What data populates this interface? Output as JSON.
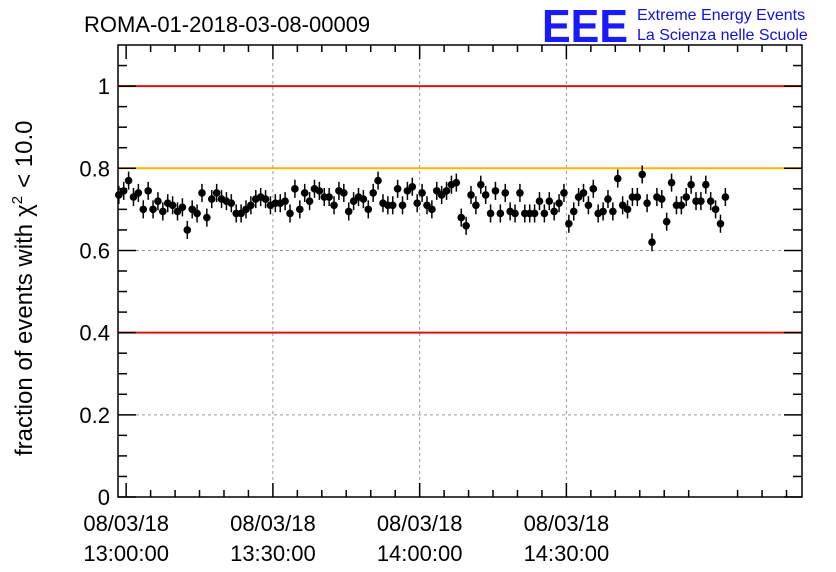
{
  "header": {
    "title": "ROMA-01-2018-03-08-00009"
  },
  "logo": {
    "mark": "EEE",
    "line1": "Extreme Energy Events",
    "line2": "La Scienza nelle Scuole",
    "color": "#1a1aff"
  },
  "colors": {
    "limit_red": "#e01010",
    "limit_orange": "#ffb400",
    "grid": "#999999",
    "points": "#000000"
  },
  "chart_data": {
    "type": "scatter",
    "title": "ROMA-01-2018-03-08-00009",
    "ylabel_prefix": "fraction of events with",
    "ylabel_symbol": "χ",
    "ylabel_sup": "2",
    "ylabel_suffix": "< 10.0",
    "ylim": [
      0,
      1.1
    ],
    "yticks": [
      0,
      0.2,
      0.4,
      0.6,
      0.8,
      1
    ],
    "ytick_labels": [
      "0",
      "0.2",
      "0.4",
      "0.6",
      "0.8",
      "1"
    ],
    "xlim": [
      "12:58:20",
      "15:18:10"
    ],
    "xticks": [
      "13:00:00",
      "13:30:00",
      "14:00:00",
      "14:30:00"
    ],
    "xtick_date": "08/03/18",
    "grid": true,
    "reference_lines": [
      {
        "y": 1.0,
        "color": "#e01010"
      },
      {
        "y": 0.8,
        "color": "#ffb400"
      },
      {
        "y": 0.4,
        "color": "#e01010"
      }
    ],
    "error": 0.022,
    "points": [
      {
        "t": "12:58:30",
        "y": 0.735
      },
      {
        "t": "12:59:30",
        "y": 0.745
      },
      {
        "t": "13:00:30",
        "y": 0.77
      },
      {
        "t": "13:01:30",
        "y": 0.73
      },
      {
        "t": "13:02:30",
        "y": 0.74
      },
      {
        "t": "13:03:30",
        "y": 0.7
      },
      {
        "t": "13:04:30",
        "y": 0.745
      },
      {
        "t": "13:05:30",
        "y": 0.7
      },
      {
        "t": "13:06:30",
        "y": 0.72
      },
      {
        "t": "13:07:30",
        "y": 0.695
      },
      {
        "t": "13:08:30",
        "y": 0.715
      },
      {
        "t": "13:09:30",
        "y": 0.71
      },
      {
        "t": "13:10:30",
        "y": 0.695
      },
      {
        "t": "13:11:30",
        "y": 0.705
      },
      {
        "t": "13:12:30",
        "y": 0.65
      },
      {
        "t": "13:13:30",
        "y": 0.7
      },
      {
        "t": "13:14:30",
        "y": 0.69
      },
      {
        "t": "13:15:30",
        "y": 0.74
      },
      {
        "t": "13:16:30",
        "y": 0.68
      },
      {
        "t": "13:17:30",
        "y": 0.725
      },
      {
        "t": "13:18:30",
        "y": 0.74
      },
      {
        "t": "13:19:30",
        "y": 0.725
      },
      {
        "t": "13:20:30",
        "y": 0.72
      },
      {
        "t": "13:21:30",
        "y": 0.715
      },
      {
        "t": "13:22:30",
        "y": 0.69
      },
      {
        "t": "13:23:30",
        "y": 0.69
      },
      {
        "t": "13:24:30",
        "y": 0.7
      },
      {
        "t": "13:25:30",
        "y": 0.71
      },
      {
        "t": "13:26:30",
        "y": 0.725
      },
      {
        "t": "13:27:30",
        "y": 0.73
      },
      {
        "t": "13:28:30",
        "y": 0.725
      },
      {
        "t": "13:29:30",
        "y": 0.71
      },
      {
        "t": "13:30:30",
        "y": 0.715
      },
      {
        "t": "13:31:30",
        "y": 0.715
      },
      {
        "t": "13:32:30",
        "y": 0.72
      },
      {
        "t": "13:33:30",
        "y": 0.69
      },
      {
        "t": "13:34:30",
        "y": 0.75
      },
      {
        "t": "13:35:30",
        "y": 0.7
      },
      {
        "t": "13:36:30",
        "y": 0.74
      },
      {
        "t": "13:37:30",
        "y": 0.72
      },
      {
        "t": "13:38:30",
        "y": 0.75
      },
      {
        "t": "13:39:30",
        "y": 0.745
      },
      {
        "t": "13:40:30",
        "y": 0.73
      },
      {
        "t": "13:41:30",
        "y": 0.73
      },
      {
        "t": "13:42:30",
        "y": 0.71
      },
      {
        "t": "13:43:30",
        "y": 0.745
      },
      {
        "t": "13:44:30",
        "y": 0.74
      },
      {
        "t": "13:45:30",
        "y": 0.695
      },
      {
        "t": "13:46:30",
        "y": 0.72
      },
      {
        "t": "13:47:30",
        "y": 0.73
      },
      {
        "t": "13:48:30",
        "y": 0.725
      },
      {
        "t": "13:49:30",
        "y": 0.7
      },
      {
        "t": "13:50:30",
        "y": 0.74
      },
      {
        "t": "13:51:30",
        "y": 0.77
      },
      {
        "t": "13:52:30",
        "y": 0.715
      },
      {
        "t": "13:53:30",
        "y": 0.71
      },
      {
        "t": "13:54:30",
        "y": 0.71
      },
      {
        "t": "13:55:30",
        "y": 0.75
      },
      {
        "t": "13:56:30",
        "y": 0.71
      },
      {
        "t": "13:57:30",
        "y": 0.745
      },
      {
        "t": "13:58:30",
        "y": 0.755
      },
      {
        "t": "13:59:30",
        "y": 0.715
      },
      {
        "t": "14:00:30",
        "y": 0.74
      },
      {
        "t": "14:01:30",
        "y": 0.71
      },
      {
        "t": "14:02:30",
        "y": 0.7
      },
      {
        "t": "14:03:30",
        "y": 0.745
      },
      {
        "t": "14:04:30",
        "y": 0.735
      },
      {
        "t": "14:05:30",
        "y": 0.745
      },
      {
        "t": "14:06:30",
        "y": 0.76
      },
      {
        "t": "14:07:30",
        "y": 0.765
      },
      {
        "t": "14:08:30",
        "y": 0.68
      },
      {
        "t": "14:09:30",
        "y": 0.66
      },
      {
        "t": "14:10:30",
        "y": 0.735
      },
      {
        "t": "14:11:30",
        "y": 0.71
      },
      {
        "t": "14:12:30",
        "y": 0.76
      },
      {
        "t": "14:13:30",
        "y": 0.735
      },
      {
        "t": "14:14:30",
        "y": 0.69
      },
      {
        "t": "14:15:30",
        "y": 0.745
      },
      {
        "t": "14:16:30",
        "y": 0.69
      },
      {
        "t": "14:17:30",
        "y": 0.74
      },
      {
        "t": "14:18:30",
        "y": 0.695
      },
      {
        "t": "14:19:30",
        "y": 0.69
      },
      {
        "t": "14:20:30",
        "y": 0.74
      },
      {
        "t": "14:21:30",
        "y": 0.69
      },
      {
        "t": "14:22:30",
        "y": 0.69
      },
      {
        "t": "14:23:30",
        "y": 0.69
      },
      {
        "t": "14:24:30",
        "y": 0.72
      },
      {
        "t": "14:25:30",
        "y": 0.69
      },
      {
        "t": "14:26:30",
        "y": 0.72
      },
      {
        "t": "14:27:30",
        "y": 0.695
      },
      {
        "t": "14:28:30",
        "y": 0.715
      },
      {
        "t": "14:29:30",
        "y": 0.74
      },
      {
        "t": "14:30:30",
        "y": 0.665
      },
      {
        "t": "14:31:30",
        "y": 0.695
      },
      {
        "t": "14:32:30",
        "y": 0.73
      },
      {
        "t": "14:33:30",
        "y": 0.74
      },
      {
        "t": "14:34:30",
        "y": 0.71
      },
      {
        "t": "14:35:30",
        "y": 0.75
      },
      {
        "t": "14:36:30",
        "y": 0.69
      },
      {
        "t": "14:37:30",
        "y": 0.695
      },
      {
        "t": "14:38:30",
        "y": 0.725
      },
      {
        "t": "14:39:30",
        "y": 0.695
      },
      {
        "t": "14:40:30",
        "y": 0.775
      },
      {
        "t": "14:41:30",
        "y": 0.71
      },
      {
        "t": "14:42:30",
        "y": 0.7
      },
      {
        "t": "14:43:30",
        "y": 0.73
      },
      {
        "t": "14:44:30",
        "y": 0.73
      },
      {
        "t": "14:45:30",
        "y": 0.785
      },
      {
        "t": "14:46:30",
        "y": 0.715
      },
      {
        "t": "14:47:30",
        "y": 0.62
      },
      {
        "t": "14:48:30",
        "y": 0.73
      },
      {
        "t": "14:49:30",
        "y": 0.725
      },
      {
        "t": "14:50:30",
        "y": 0.67
      },
      {
        "t": "14:51:30",
        "y": 0.765
      },
      {
        "t": "14:52:30",
        "y": 0.71
      },
      {
        "t": "14:53:30",
        "y": 0.71
      },
      {
        "t": "14:54:30",
        "y": 0.73
      },
      {
        "t": "14:55:30",
        "y": 0.76
      },
      {
        "t": "14:56:30",
        "y": 0.72
      },
      {
        "t": "14:57:30",
        "y": 0.72
      },
      {
        "t": "14:58:30",
        "y": 0.76
      },
      {
        "t": "14:59:30",
        "y": 0.72
      },
      {
        "t": "15:00:30",
        "y": 0.7
      },
      {
        "t": "15:01:30",
        "y": 0.665
      },
      {
        "t": "15:02:30",
        "y": 0.73
      }
    ]
  }
}
